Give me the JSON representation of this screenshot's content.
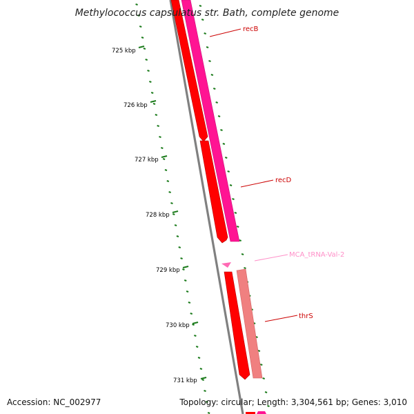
{
  "title": "Methylococcus capsulatus str. Bath, complete genome",
  "footer": {
    "accession": "Accession: NC_002977",
    "topology": "Topology: circular; Length: 3,304,561 bp; Genes: 3,010"
  },
  "colors": {
    "backbone": "#808080",
    "forward_cds": "#ff0000",
    "reverse_recB_recD": "#ff1493",
    "reverse_thrS": "#f08080",
    "trna": "#ff69b4",
    "gc_ticks": "#1a7a1a"
  },
  "ticks": [
    "725 kbp",
    "726 kbp",
    "727 kbp",
    "728 kbp",
    "729 kbp",
    "730 kbp",
    "731 kbp"
  ],
  "genes": [
    {
      "name": "recB",
      "color": "#cc0000"
    },
    {
      "name": "recD",
      "color": "#cc0000"
    },
    {
      "name": "MCA_tRNA-Val-2",
      "color": "#ff8fc8"
    },
    {
      "name": "thrS",
      "color": "#cc0000"
    }
  ]
}
